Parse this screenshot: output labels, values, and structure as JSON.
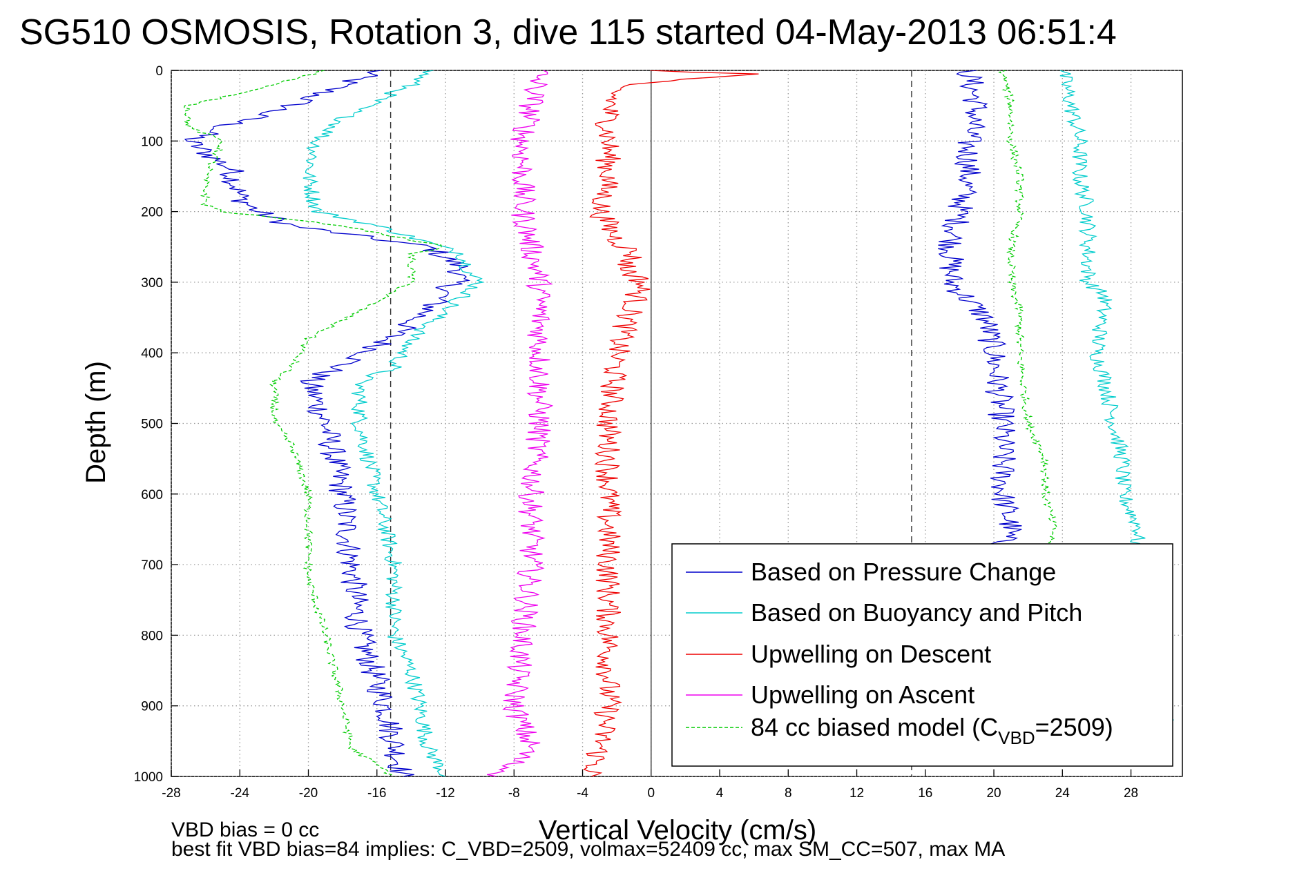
{
  "chart_data": {
    "type": "line",
    "title": "SG510 OSMOSIS, Rotation 3, dive 115 started 04-May-2013 06:51:4",
    "xlabel": "Vertical Velocity (cm/s)",
    "ylabel": "Depth (m)",
    "xlim": [
      -28,
      31
    ],
    "ylim": [
      1000,
      0
    ],
    "x_ticks": [
      "-28",
      "-24",
      "-20",
      "-16",
      "-12",
      "-8",
      "-4",
      "0",
      "4",
      "8",
      "12",
      "16",
      "20",
      "24",
      "28"
    ],
    "y_ticks": [
      "0",
      "100",
      "200",
      "300",
      "400",
      "500",
      "600",
      "700",
      "800",
      "900",
      "1000"
    ],
    "grid": true,
    "legend_position": "bottom-right",
    "annotations": {
      "bias_note": "VBD bias = 0 cc",
      "fit_note": "best fit VBD bias=84 implies: C_VBD=2509, volmax=52409 cc, max SM_CC=507, max MA"
    },
    "reference_lines": [
      {
        "style": "dashed",
        "x": -15.2
      },
      {
        "style": "dashed",
        "x": 15.2
      },
      {
        "style": "solid",
        "x": 0
      }
    ],
    "series": [
      {
        "name": "Based on Pressure Change",
        "color": "#0000cc",
        "style": "solid",
        "descent": {
          "depth": [
            0,
            20,
            50,
            80,
            100,
            140,
            180,
            200,
            220,
            250,
            280,
            300,
            340,
            400,
            440,
            500,
            600,
            700,
            800,
            900,
            1000
          ],
          "x": [
            -16,
            -18,
            -21,
            -25,
            -27,
            -24.5,
            -24,
            -23,
            -21,
            -13,
            -11,
            -11.5,
            -13,
            -16.5,
            -20,
            -19,
            -18,
            -17.5,
            -17,
            -15.5,
            -14.5
          ]
        },
        "ascent": {
          "depth": [
            0,
            50,
            100,
            150,
            200,
            250,
            300,
            350,
            400,
            500,
            600,
            650,
            680
          ],
          "x": [
            18.5,
            19,
            18.5,
            18.5,
            18,
            17.5,
            17.5,
            19.5,
            20,
            20.5,
            20.5,
            21,
            20
          ]
        }
      },
      {
        "name": "Based on Buoyancy and Pitch",
        "color": "#00cccc",
        "style": "solid",
        "descent": {
          "depth": [
            0,
            20,
            60,
            100,
            150,
            200,
            220,
            260,
            290,
            300,
            340,
            380,
            420,
            440,
            500,
            600,
            700,
            800,
            850,
            900,
            960,
            1000
          ],
          "x": [
            -13,
            -14,
            -17.5,
            -19.5,
            -20,
            -19.5,
            -16,
            -11,
            -10.5,
            -10,
            -12,
            -14,
            -15,
            -17,
            -17,
            -16,
            -15,
            -15,
            -14,
            -13.5,
            -13,
            -12
          ]
        },
        "ascent": {
          "depth": [
            0,
            50,
            100,
            150,
            200,
            250,
            300,
            320,
            400,
            440,
            500,
            550,
            600,
            650,
            700,
            800,
            900,
            920
          ],
          "x": [
            24,
            24.5,
            25,
            25,
            25.5,
            25.5,
            25.5,
            26.5,
            26,
            26.5,
            27,
            27.5,
            27.5,
            28.5,
            28,
            28,
            28,
            30.5
          ]
        }
      },
      {
        "name": "Upwelling on Descent",
        "color": "#ee0000",
        "style": "solid",
        "descent": {
          "depth": [
            0,
            5,
            20,
            60,
            100,
            150,
            200,
            240,
            260,
            280,
            300,
            330,
            360,
            400,
            500,
            600,
            700,
            800,
            900,
            960,
            1000
          ],
          "x": [
            0,
            6,
            -2,
            -2.5,
            -2.5,
            -2.5,
            -3,
            -2,
            -1,
            -1.5,
            -0.5,
            -1,
            -1.5,
            -2,
            -2.5,
            -2.5,
            -2.5,
            -2.5,
            -2.5,
            -3,
            -3.5
          ]
        }
      },
      {
        "name": "Upwelling on Ascent",
        "color": "#ee00ee",
        "style": "solid",
        "descent": {
          "depth": [
            0,
            50,
            100,
            150,
            200,
            250,
            300,
            400,
            500,
            600,
            700,
            800,
            900,
            960,
            1000
          ],
          "x": [
            -6.5,
            -7,
            -7.5,
            -7.5,
            -7.5,
            -7,
            -6.5,
            -6.5,
            -6.5,
            -7,
            -7,
            -7.5,
            -8,
            -7,
            -9
          ]
        }
      },
      {
        "name": "84 cc biased model (C",
        "name_sub": "VBD",
        "name_suffix": "=2509)",
        "color": "#00cc00",
        "style": "dashed",
        "descent": {
          "depth": [
            0,
            20,
            50,
            80,
            100,
            150,
            190,
            200,
            220,
            250,
            260,
            300,
            340,
            380,
            420,
            440,
            500,
            530,
            600,
            700,
            720,
            800,
            900,
            960,
            1000
          ],
          "x": [
            -19,
            -22,
            -27,
            -27,
            -25,
            -26,
            -26,
            -25,
            -18,
            -12,
            -14,
            -14,
            -17,
            -20,
            -21,
            -22,
            -22,
            -21,
            -20,
            -20,
            -20,
            -19,
            -18,
            -17.5,
            -15
          ]
        },
        "ascent": {
          "depth": [
            0,
            50,
            100,
            150,
            200,
            250,
            300,
            340,
            400,
            500,
            550,
            600,
            650,
            700
          ],
          "x": [
            20.5,
            21,
            21,
            21.5,
            21.5,
            21,
            21,
            21.5,
            21.5,
            22,
            23,
            23,
            23.5,
            23
          ]
        }
      }
    ]
  }
}
